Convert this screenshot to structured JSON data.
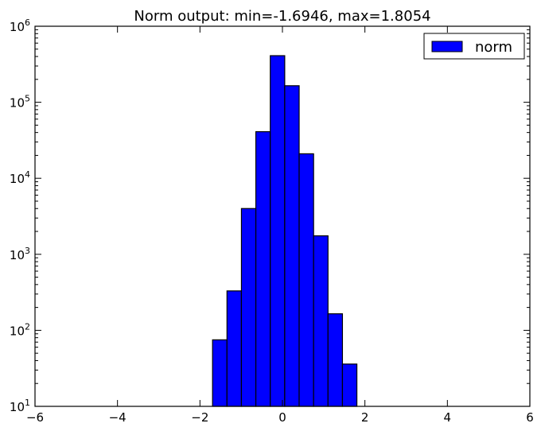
{
  "chart_data": {
    "type": "bar",
    "title": "Norm output: min=-1.6946, max=1.8054",
    "xlabel": "",
    "ylabel": "",
    "xlim": [
      -6,
      6
    ],
    "ylim": [
      10,
      1000000
    ],
    "y_scale": "log",
    "grid": false,
    "legend_position": "top-right",
    "color": "#0000ff",
    "edge_color": "#000000",
    "x_ticks": [
      -6,
      -4,
      -2,
      0,
      2,
      4,
      6
    ],
    "x_tick_labels": [
      "−6",
      "−4",
      "−2",
      "0",
      "2",
      "4",
      "6"
    ],
    "y_ticks": [
      10,
      100,
      1000,
      10000,
      100000,
      1000000
    ],
    "y_tick_labels": [
      {
        "base": "10",
        "exp": "1"
      },
      {
        "base": "10",
        "exp": "2"
      },
      {
        "base": "10",
        "exp": "3"
      },
      {
        "base": "10",
        "exp": "4"
      },
      {
        "base": "10",
        "exp": "5"
      },
      {
        "base": "10",
        "exp": "6"
      }
    ],
    "series": [
      {
        "name": "norm",
        "bins": [
          {
            "x0": -1.6946,
            "x1": -1.3446,
            "value": 75
          },
          {
            "x0": -1.3446,
            "x1": -0.9946,
            "value": 330
          },
          {
            "x0": -0.9946,
            "x1": -0.6446,
            "value": 4000
          },
          {
            "x0": -0.6446,
            "x1": -0.2946,
            "value": 41000
          },
          {
            "x0": -0.2946,
            "x1": 0.0554,
            "value": 410000
          },
          {
            "x0": 0.0554,
            "x1": 0.4054,
            "value": 165000
          },
          {
            "x0": 0.4054,
            "x1": 0.7554,
            "value": 21000
          },
          {
            "x0": 0.7554,
            "x1": 1.1054,
            "value": 1750
          },
          {
            "x0": 1.1054,
            "x1": 1.4554,
            "value": 165
          },
          {
            "x0": 1.4554,
            "x1": 1.8054,
            "value": 36
          }
        ]
      }
    ]
  }
}
